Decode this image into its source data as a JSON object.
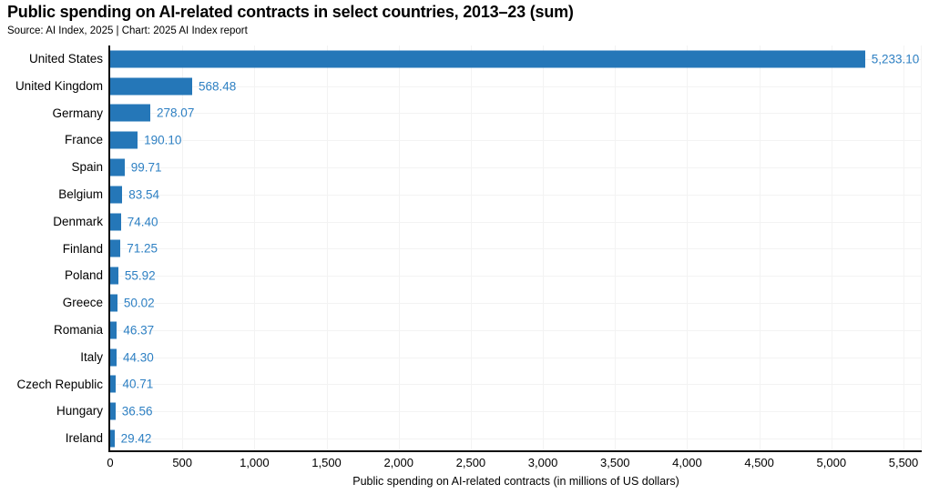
{
  "header": {
    "title": "Public spending on AI-related contracts in select countries, 2013–23 (sum)",
    "source": "Source: AI Index, 2025 | Chart: 2025 AI Index report"
  },
  "chart_data": {
    "type": "bar",
    "orientation": "horizontal",
    "title": "Public spending on AI-related contracts in select countries, 2013–23 (sum)",
    "xlabel": "Public spending on AI-related contracts (in millions of US dollars)",
    "ylabel": "",
    "categories": [
      "United States",
      "United Kingdom",
      "Germany",
      "France",
      "Spain",
      "Belgium",
      "Denmark",
      "Finland",
      "Poland",
      "Greece",
      "Romania",
      "Italy",
      "Czech Republic",
      "Hungary",
      "Ireland"
    ],
    "values": [
      5233.1,
      568.48,
      278.07,
      190.1,
      99.71,
      83.54,
      74.4,
      71.25,
      55.92,
      50.02,
      46.37,
      44.3,
      40.71,
      36.56,
      29.42
    ],
    "value_labels": [
      "5,233.10",
      "568.48",
      "278.07",
      "190.10",
      "99.71",
      "83.54",
      "74.40",
      "71.25",
      "55.92",
      "50.02",
      "46.37",
      "44.30",
      "40.71",
      "36.56",
      "29.42"
    ],
    "xlim": [
      0,
      5500
    ],
    "x_ticks": [
      0,
      500,
      1000,
      1500,
      2000,
      2500,
      3000,
      3500,
      4000,
      4500,
      5000,
      5500
    ],
    "x_tick_labels": [
      "0",
      "500",
      "1,000",
      "1,500",
      "2,000",
      "2,500",
      "3,000",
      "3,500",
      "4,000",
      "4,500",
      "5,000",
      "5,500"
    ],
    "grid": true,
    "legend": "none",
    "colors": {
      "bar": "#2577b8",
      "value_label": "#2e80c3",
      "axis": "#0b0b0b",
      "gridline": "#f3f3f3",
      "text": "#000000"
    }
  }
}
